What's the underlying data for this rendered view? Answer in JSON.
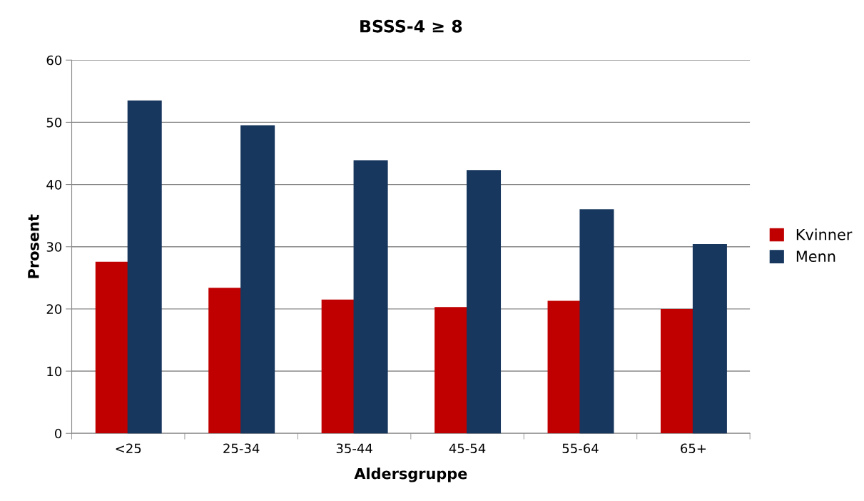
{
  "chart_data": {
    "type": "bar",
    "title": "BSSS-4 ≥ 8",
    "xlabel": "Aldersgruppe",
    "ylabel": "Prosent",
    "categories": [
      "<25",
      "25-34",
      "35-44",
      "45-54",
      "55-64",
      "65+"
    ],
    "series": [
      {
        "name": "Kvinner",
        "color": "#c00000",
        "values": [
          27.6,
          23.4,
          21.5,
          20.3,
          21.3,
          20.0
        ]
      },
      {
        "name": "Menn",
        "color": "#17375e",
        "values": [
          53.4,
          49.4,
          43.8,
          42.2,
          35.9,
          30.3
        ]
      }
    ],
    "ylim": [
      0,
      60
    ],
    "yticks": [
      0,
      10,
      20,
      30,
      40,
      50,
      60
    ],
    "grid": "y",
    "legend": "right"
  }
}
